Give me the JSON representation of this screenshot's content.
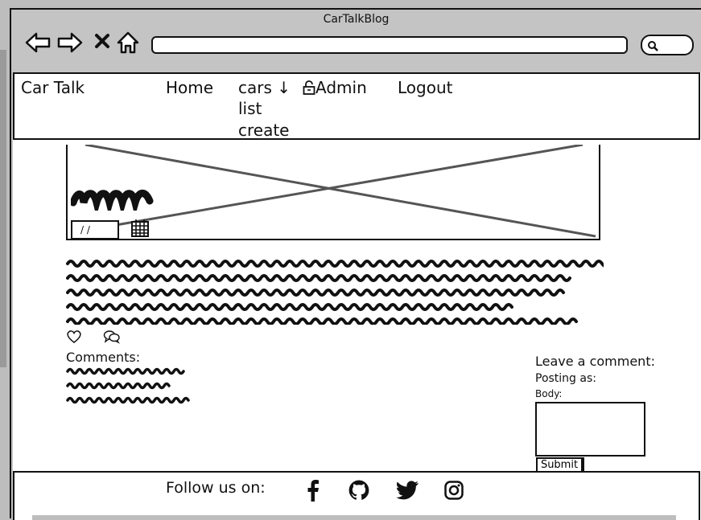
{
  "browser": {
    "title": "CarTalkBlog"
  },
  "navbar": {
    "brand": "Car Talk",
    "home": "Home",
    "cars": "cars",
    "cars_arrow": "↓",
    "cars_list": "list",
    "cars_create": "create",
    "admin": "Admin",
    "logout": "Logout"
  },
  "post": {
    "date_placeholder": "/ /"
  },
  "comments": {
    "title": "Comments:"
  },
  "comment_form": {
    "title": "Leave a comment:",
    "posting_as": "Posting as:",
    "body_label": "Body:",
    "submit": "Submit"
  },
  "footer": {
    "follow": "Follow us on:",
    "icons": [
      "facebook-icon",
      "github-icon",
      "twitter-icon",
      "instagram-icon"
    ]
  }
}
